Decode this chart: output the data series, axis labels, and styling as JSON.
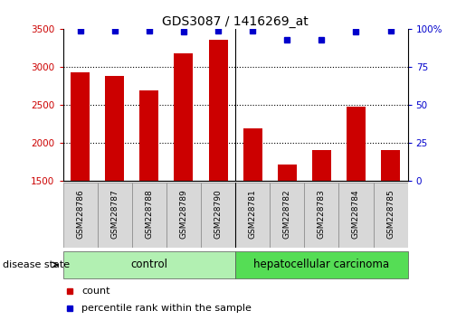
{
  "title": "GDS3087 / 1416269_at",
  "samples": [
    "GSM228786",
    "GSM228787",
    "GSM228788",
    "GSM228789",
    "GSM228790",
    "GSM228781",
    "GSM228782",
    "GSM228783",
    "GSM228784",
    "GSM228785"
  ],
  "counts": [
    2930,
    2880,
    2690,
    3180,
    3360,
    2190,
    1710,
    1900,
    2480,
    1900
  ],
  "percentiles": [
    99,
    99,
    99,
    98,
    99,
    99,
    93,
    93,
    98,
    99
  ],
  "ylim_left": [
    1500,
    3500
  ],
  "ylim_right": [
    0,
    100
  ],
  "yticks_left": [
    1500,
    2000,
    2500,
    3000,
    3500
  ],
  "yticks_right": [
    0,
    25,
    50,
    75,
    100
  ],
  "bar_color": "#cc0000",
  "dot_color": "#0000cc",
  "bar_width": 0.55,
  "grid_lines": [
    2000,
    2500,
    3000
  ],
  "control_color_light": "#b2f0b2",
  "control_color_dark": "#55dd55",
  "control_label": "control",
  "carcinoma_label": "hepatocellular carcinoma",
  "disease_state_label": "disease state",
  "legend_count_label": "count",
  "legend_percentile_label": "percentile rank within the sample",
  "n_control": 5,
  "n_carcinoma": 5,
  "title_fontsize": 10,
  "tick_fontsize": 7.5,
  "sample_fontsize": 6.5,
  "label_fontsize": 8,
  "disease_fontsize": 8.5
}
